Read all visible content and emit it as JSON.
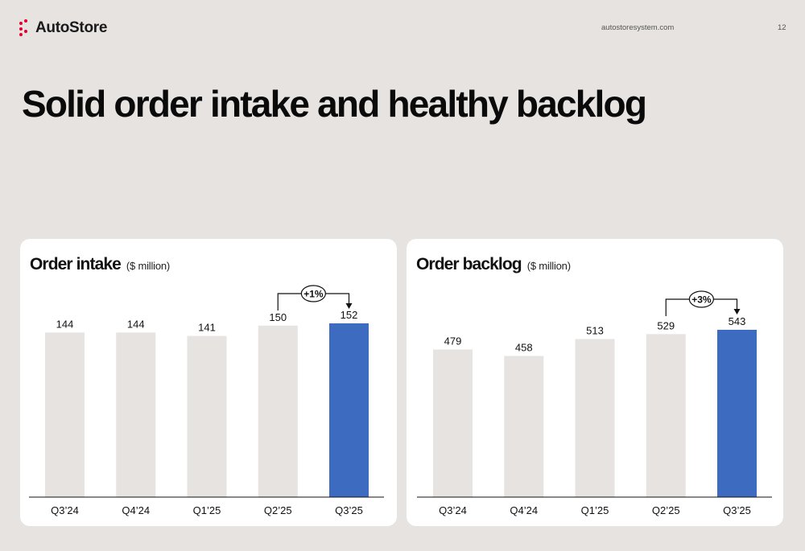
{
  "header": {
    "logo_text": "AutoStore",
    "website": "autostoresystem.com",
    "page_number": "12"
  },
  "slide_title": "Solid order intake and healthy backlog",
  "colors": {
    "background": "#e6e3e0",
    "panel": "#ffffff",
    "bar_default": "#e6e3e0",
    "bar_highlight": "#3d6bbf",
    "logo_accent": "#e4002b"
  },
  "chart_data": [
    {
      "type": "bar",
      "title": "Order intake",
      "unit": "($ million)",
      "categories": [
        "Q3’24",
        "Q4’24",
        "Q1’25",
        "Q2’25",
        "Q3’25"
      ],
      "values": [
        144,
        144,
        141,
        150,
        152
      ],
      "data_labels": [
        "144",
        "144",
        "141",
        "150",
        "152"
      ],
      "highlight_index": 4,
      "ylim": [
        0,
        152
      ],
      "annotation": {
        "label": "+1%",
        "from_index": 3,
        "to_index": 4
      }
    },
    {
      "type": "bar",
      "title": "Order backlog",
      "unit": "($ million)",
      "categories": [
        "Q3’24",
        "Q4’24",
        "Q1’25",
        "Q2’25",
        "Q3’25"
      ],
      "values": [
        479,
        458,
        513,
        529,
        543
      ],
      "data_labels": [
        "479",
        "458",
        "513",
        "529",
        "543"
      ],
      "highlight_index": 4,
      "ylim": [
        0,
        543
      ],
      "annotation": {
        "label": "+3%",
        "from_index": 3,
        "to_index": 4
      }
    }
  ]
}
